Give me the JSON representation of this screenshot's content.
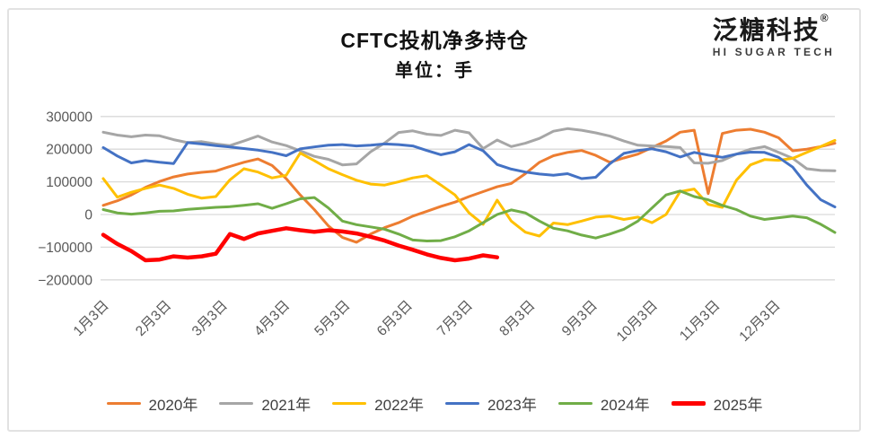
{
  "title": "CFTC投机净多持仓",
  "subtitle": "单位：手",
  "logo": {
    "name": "泛糖科技",
    "reg": "®",
    "tagline": "HI SUGAR TECH"
  },
  "chart_data": {
    "type": "line",
    "title": "CFTC投机净多持仓",
    "subtitle": "单位：手",
    "xlabel": "",
    "ylabel": "",
    "x_unit": "weekly points from Jan 3 to Dec 31",
    "x_tick_labels": [
      "1月3日",
      "2月3日",
      "3月3日",
      "4月3日",
      "5月3日",
      "6月3日",
      "7月3日",
      "8月3日",
      "9月3日",
      "10月3日",
      "11月3日",
      "12月3日"
    ],
    "month_day_offsets": [
      0,
      31,
      59,
      90,
      120,
      151,
      181,
      212,
      243,
      273,
      304,
      334
    ],
    "y_ticks": [
      300000,
      200000,
      100000,
      0,
      -100000,
      -200000
    ],
    "ylim": [
      -200000,
      300000
    ],
    "grid": "horizontal-only",
    "gridline_color": "#d9d9d9",
    "axis_label_color": "#595959",
    "legend_position": "bottom",
    "series": [
      {
        "name": "2020年",
        "color": "#ED7D31",
        "width": 3,
        "values": [
          28000,
          42000,
          60000,
          83000,
          101000,
          115000,
          124000,
          129000,
          133000,
          147000,
          160000,
          170000,
          150000,
          110000,
          60000,
          15000,
          -35000,
          -70000,
          -85000,
          -60000,
          -40000,
          -25000,
          -5000,
          10000,
          25000,
          38000,
          55000,
          70000,
          85000,
          95000,
          125000,
          160000,
          180000,
          190000,
          196000,
          181000,
          160000,
          173000,
          185000,
          205000,
          225000,
          252000,
          258000,
          64000,
          248000,
          258000,
          261000,
          252000,
          235000,
          195000,
          200000,
          208000,
          218000
        ]
      },
      {
        "name": "2021年",
        "color": "#A6A6A6",
        "width": 3,
        "values": [
          252000,
          243000,
          238000,
          243000,
          241000,
          229000,
          220000,
          223000,
          216000,
          211000,
          225000,
          240000,
          222000,
          211000,
          195000,
          178000,
          169000,
          152000,
          155000,
          192000,
          219000,
          251000,
          256000,
          246000,
          242000,
          258000,
          250000,
          202000,
          228000,
          208000,
          218000,
          233000,
          255000,
          263000,
          258000,
          250000,
          240000,
          225000,
          212000,
          210000,
          208000,
          205000,
          158000,
          157000,
          165000,
          185000,
          200000,
          208000,
          190000,
          172000,
          140000,
          135000,
          134000
        ]
      },
      {
        "name": "2022年",
        "color": "#FFC000",
        "width": 3,
        "values": [
          110000,
          53000,
          68000,
          80000,
          90000,
          80000,
          62000,
          50000,
          55000,
          106000,
          140000,
          130000,
          112000,
          120000,
          188000,
          165000,
          140000,
          122000,
          105000,
          93000,
          90000,
          100000,
          112000,
          119000,
          90000,
          60000,
          5000,
          -30000,
          44000,
          -20000,
          -54000,
          -66000,
          -26000,
          -31000,
          -20000,
          -8000,
          -5000,
          -15000,
          -8000,
          -25000,
          0,
          70000,
          78000,
          31000,
          22000,
          105000,
          152000,
          168000,
          166000,
          172000,
          190000,
          208000,
          227000
        ]
      },
      {
        "name": "2023年",
        "color": "#4472C4",
        "width": 3,
        "values": [
          205000,
          179000,
          158000,
          165000,
          160000,
          156000,
          220000,
          216000,
          211000,
          207000,
          202000,
          197000,
          190000,
          180000,
          201000,
          207000,
          212000,
          214000,
          210000,
          212000,
          216000,
          214000,
          210000,
          196000,
          183000,
          192000,
          214000,
          195000,
          153000,
          139000,
          130000,
          124000,
          120000,
          125000,
          110000,
          114000,
          155000,
          187000,
          196000,
          201000,
          192000,
          176000,
          190000,
          182000,
          175000,
          185000,
          191000,
          190000,
          175000,
          145000,
          90000,
          45000,
          23000
        ]
      },
      {
        "name": "2024年",
        "color": "#70AD47",
        "width": 3,
        "values": [
          15000,
          5000,
          1000,
          5000,
          10000,
          11000,
          16000,
          19000,
          22000,
          24000,
          28000,
          33000,
          19000,
          33000,
          48000,
          52000,
          20000,
          -20000,
          -31000,
          -38000,
          -45000,
          -60000,
          -78000,
          -81000,
          -80000,
          -68000,
          -50000,
          -25000,
          0,
          14000,
          5000,
          -20000,
          -42000,
          -50000,
          -63000,
          -72000,
          -60000,
          -45000,
          -20000,
          20000,
          60000,
          72000,
          55000,
          45000,
          28000,
          15000,
          -5000,
          -15000,
          -10000,
          -5000,
          -10000,
          -30000,
          -55000
        ]
      },
      {
        "name": "2025年",
        "color": "#FF0000",
        "width": 4.5,
        "values": [
          -62000,
          -90000,
          -112000,
          -140000,
          -138000,
          -128000,
          -132000,
          -128000,
          -120000,
          -60000,
          -75000,
          -58000,
          -50000,
          -42000,
          -48000,
          -53000,
          -48000,
          -52000,
          -58000,
          -68000,
          -80000,
          -95000,
          -108000,
          -122000,
          -133000,
          -140000,
          -135000,
          -125000,
          -131000
        ]
      }
    ]
  }
}
